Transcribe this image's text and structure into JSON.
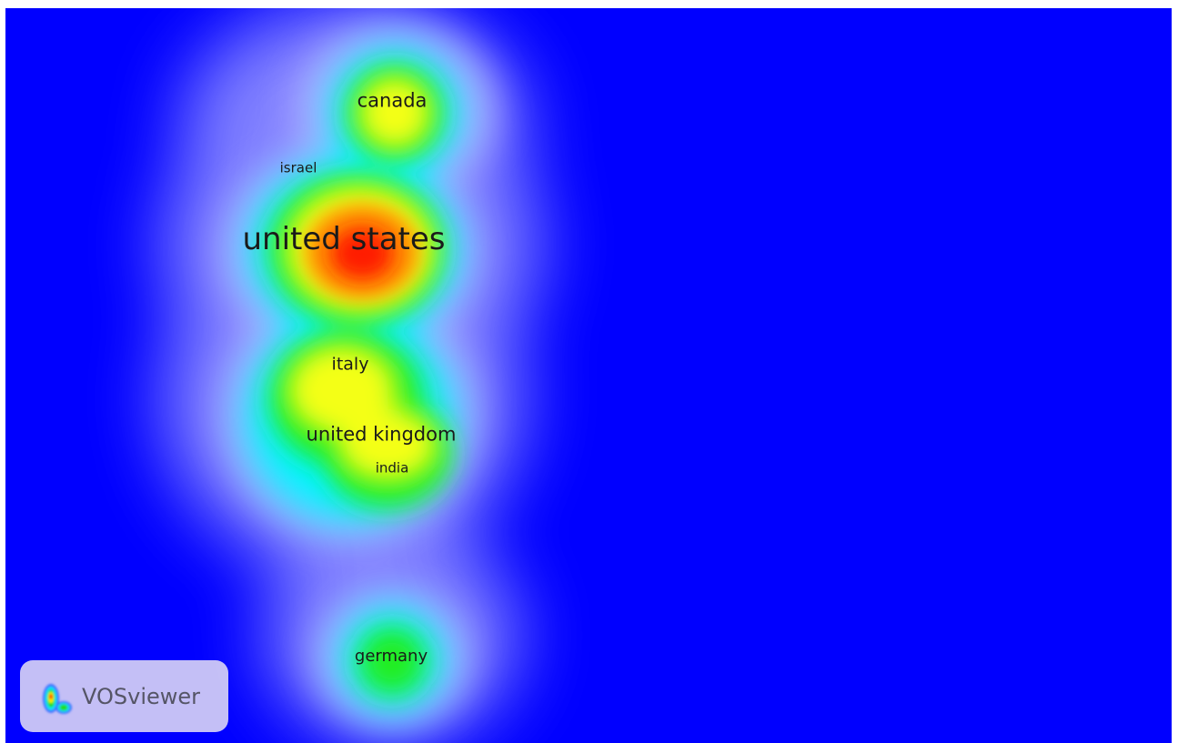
{
  "labels": [
    {
      "text": "canada",
      "weight": "medium"
    },
    {
      "text": "israel",
      "weight": "small"
    },
    {
      "text": "united states",
      "weight": "large"
    },
    {
      "text": "italy",
      "weight": "medium"
    },
    {
      "text": "united kingdom",
      "weight": "medium"
    },
    {
      "text": "india",
      "weight": "small"
    },
    {
      "text": "germany",
      "weight": "medium"
    }
  ],
  "badge": {
    "name": "VOSviewer",
    "logo_icon": "vosviewer-logo-icon"
  },
  "colors": {
    "background_density": "#0000ff",
    "low": "#00ffff",
    "mid": "#00ff00",
    "high": "#ffff00",
    "peak": "#ff0000"
  }
}
